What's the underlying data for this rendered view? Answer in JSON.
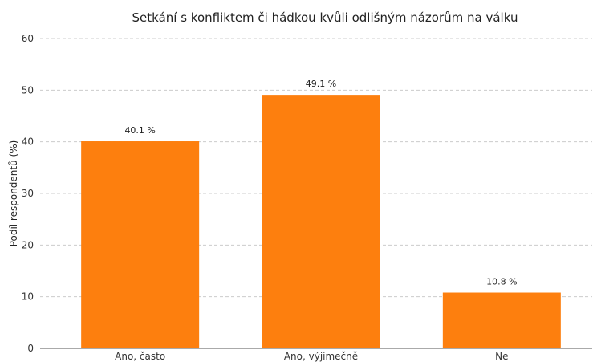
{
  "chart_data": {
    "type": "bar",
    "title": "Setkání s konfliktem či hádkou kvůli odlišným názorům na válku",
    "xlabel": "",
    "ylabel": "Podíl respondentů (%)",
    "categories": [
      "Ano, často",
      "Ano, výjimečně",
      "Ne"
    ],
    "values": [
      40.1,
      49.1,
      10.8
    ],
    "data_labels": [
      "40.1 %",
      "49.1 %",
      "10.8 %"
    ],
    "ylim": [
      0,
      60
    ],
    "yticks": [
      "0",
      "10",
      "20",
      "30",
      "40",
      "50",
      "60"
    ],
    "grid": true,
    "bar_color": "#fd7f0e",
    "legend": "none"
  }
}
